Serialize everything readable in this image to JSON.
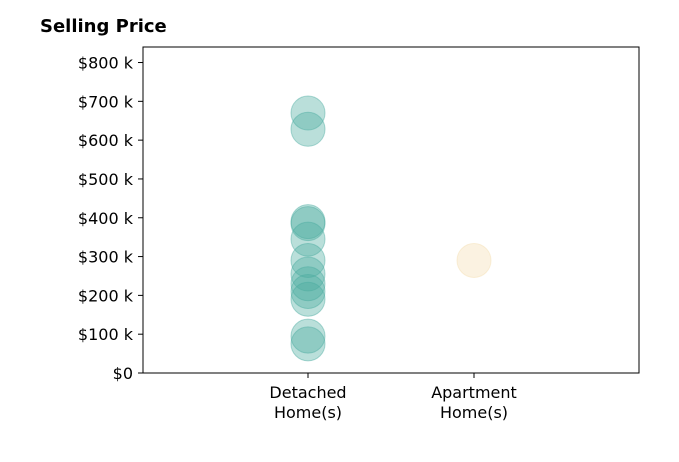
{
  "chart_data": {
    "type": "scatter",
    "title": "Selling Price",
    "xlabel": "",
    "ylabel": "",
    "categories": [
      [
        "Detached",
        "Home(s)"
      ],
      [
        "Apartment",
        "Home(s)"
      ]
    ],
    "ylim": [
      0,
      840
    ],
    "yticks": [
      0,
      100,
      200,
      300,
      400,
      500,
      600,
      700,
      800
    ],
    "ytick_labels": [
      "$0",
      "$100 k",
      "$200 k",
      "$300 k",
      "$400 k",
      "$500 k",
      "$600 k",
      "$700 k",
      "$800 k"
    ],
    "grid": false,
    "legend": "none",
    "series": [
      {
        "category": 0,
        "color": "#4aab9f",
        "values": [
          670,
          628,
          390,
          385,
          345,
          290,
          255,
          230,
          210,
          190,
          95,
          75
        ]
      },
      {
        "category": 1,
        "color": "#f5deb0",
        "values": [
          290
        ]
      }
    ]
  }
}
